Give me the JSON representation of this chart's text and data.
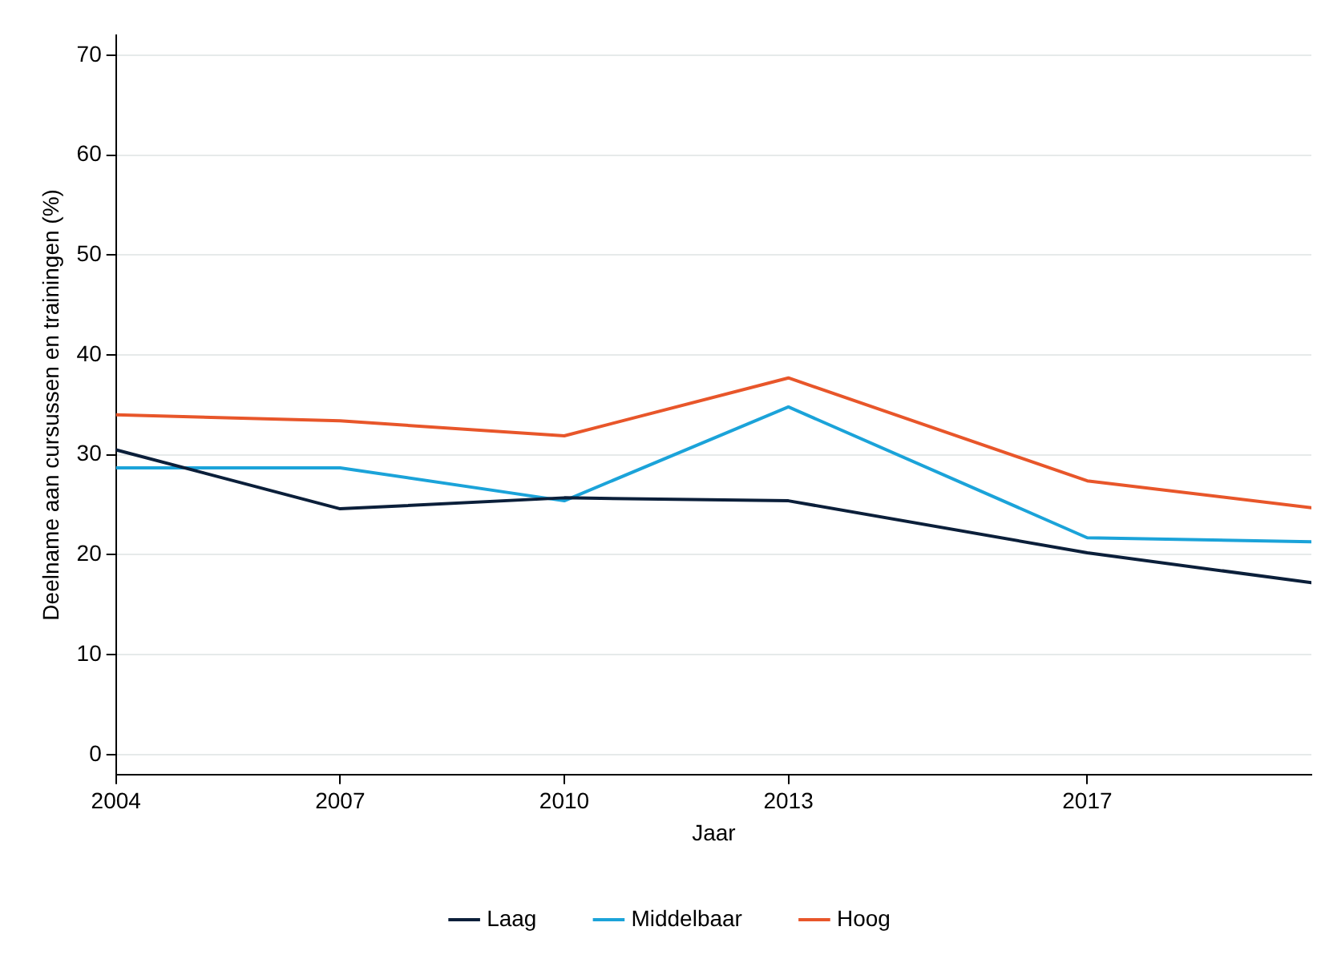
{
  "chart_data": {
    "type": "line",
    "xlabel": "Jaar",
    "ylabel": "Deelname aan cursussen en trainingen (%)",
    "x": [
      2004,
      2007,
      2010,
      2013,
      2017,
      2020
    ],
    "series": [
      {
        "name": "Laag",
        "color": "#0b1f3a",
        "values": [
          30.5,
          24.6,
          25.7,
          25.4,
          20.2,
          17.2
        ]
      },
      {
        "name": "Middelbaar",
        "color": "#1ba3d9",
        "values": [
          28.7,
          28.7,
          25.4,
          34.8,
          21.7,
          21.3
        ]
      },
      {
        "name": "Hoog",
        "color": "#e8562a",
        "values": [
          34.0,
          33.4,
          31.9,
          37.7,
          27.4,
          24.7
        ]
      }
    ],
    "xlim": [
      2004,
      2020
    ],
    "xticks": [
      2004,
      2007,
      2010,
      2013,
      2017
    ],
    "ylim": [
      -2,
      72
    ],
    "yticks": [
      0,
      10,
      20,
      30,
      40,
      50,
      60,
      70
    ],
    "grid": "y",
    "legend": "bottom",
    "marker": "none",
    "line_style": "solid"
  }
}
